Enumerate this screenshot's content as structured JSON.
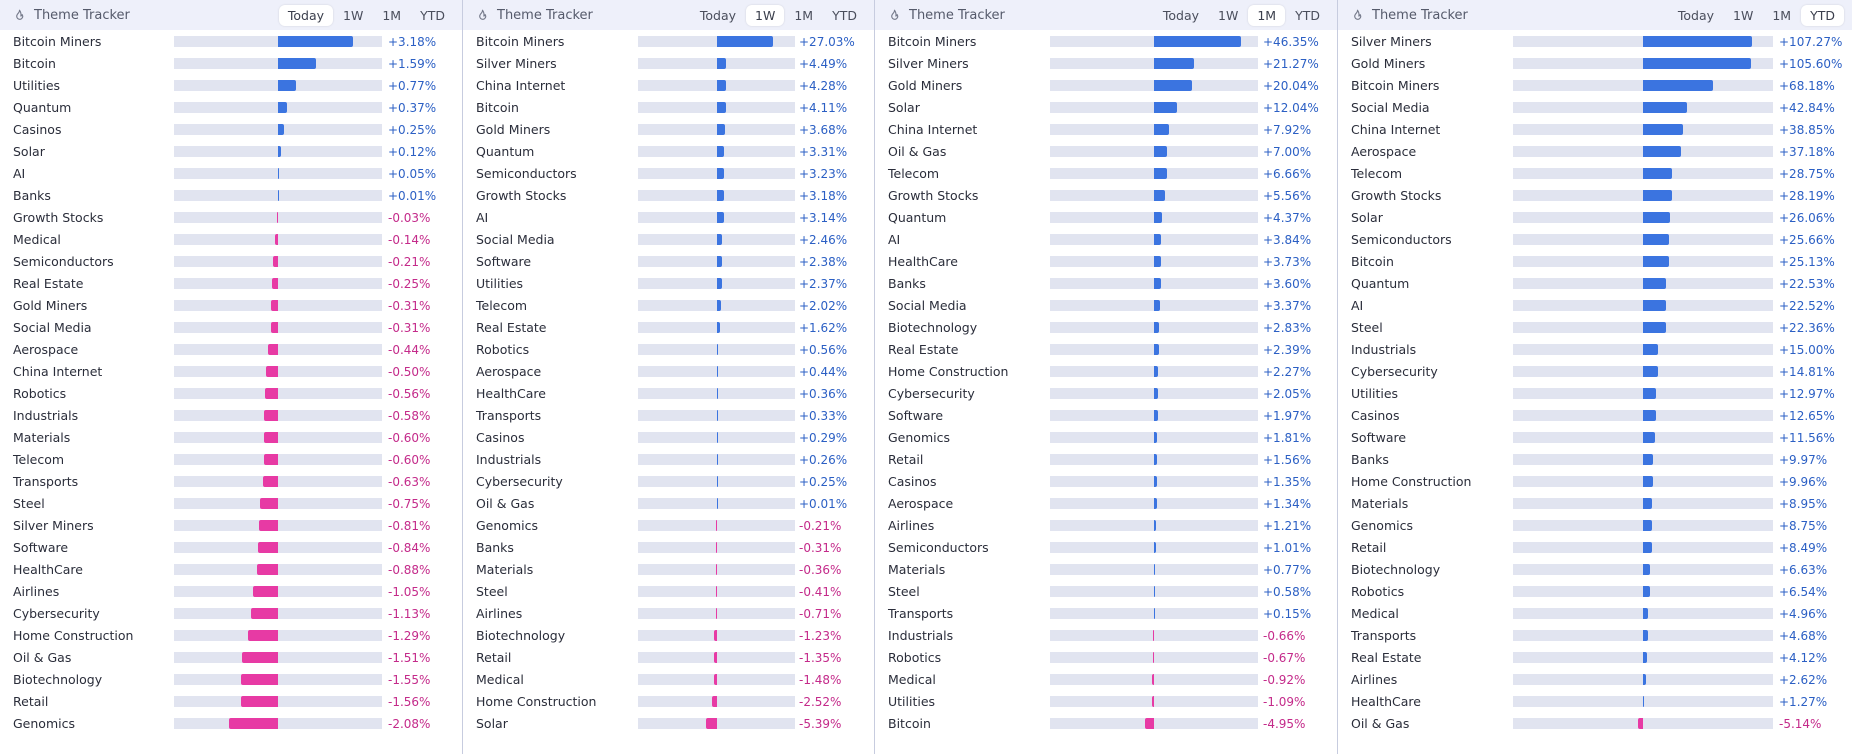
{
  "colors": {
    "positive_bar": "#3b74e0",
    "negative_bar": "#e73aa4",
    "positive_text": "#2b5fc4",
    "negative_text": "#c42a8a",
    "track": "#e1e4f0",
    "header_bg": "#eef0fa"
  },
  "panels": [
    {
      "title": "Theme Tracker",
      "icon": "fire-icon",
      "tabs": [
        "Today",
        "1W",
        "1M",
        "YTD"
      ],
      "active_tab": "Today",
      "max_abs": 4.4,
      "rows": [
        {
          "label": "Bitcoin Miners",
          "value": 3.18,
          "display": "+3.18%"
        },
        {
          "label": "Bitcoin",
          "value": 1.59,
          "display": "+1.59%"
        },
        {
          "label": "Utilities",
          "value": 0.77,
          "display": "+0.77%"
        },
        {
          "label": "Quantum",
          "value": 0.37,
          "display": "+0.37%"
        },
        {
          "label": "Casinos",
          "value": 0.25,
          "display": "+0.25%"
        },
        {
          "label": "Solar",
          "value": 0.12,
          "display": "+0.12%"
        },
        {
          "label": "AI",
          "value": 0.05,
          "display": "+0.05%"
        },
        {
          "label": "Banks",
          "value": 0.01,
          "display": "+0.01%"
        },
        {
          "label": "Growth Stocks",
          "value": -0.03,
          "display": "-0.03%"
        },
        {
          "label": "Medical",
          "value": -0.14,
          "display": "-0.14%"
        },
        {
          "label": "Semiconductors",
          "value": -0.21,
          "display": "-0.21%"
        },
        {
          "label": "Real Estate",
          "value": -0.25,
          "display": "-0.25%"
        },
        {
          "label": "Gold Miners",
          "value": -0.31,
          "display": "-0.31%"
        },
        {
          "label": "Social Media",
          "value": -0.31,
          "display": "-0.31%"
        },
        {
          "label": "Aerospace",
          "value": -0.44,
          "display": "-0.44%"
        },
        {
          "label": "China Internet",
          "value": -0.5,
          "display": "-0.50%"
        },
        {
          "label": "Robotics",
          "value": -0.56,
          "display": "-0.56%"
        },
        {
          "label": "Industrials",
          "value": -0.58,
          "display": "-0.58%"
        },
        {
          "label": "Materials",
          "value": -0.6,
          "display": "-0.60%"
        },
        {
          "label": "Telecom",
          "value": -0.6,
          "display": "-0.60%"
        },
        {
          "label": "Transports",
          "value": -0.63,
          "display": "-0.63%"
        },
        {
          "label": "Steel",
          "value": -0.75,
          "display": "-0.75%"
        },
        {
          "label": "Silver Miners",
          "value": -0.81,
          "display": "-0.81%"
        },
        {
          "label": "Software",
          "value": -0.84,
          "display": "-0.84%"
        },
        {
          "label": "HealthCare",
          "value": -0.88,
          "display": "-0.88%"
        },
        {
          "label": "Airlines",
          "value": -1.05,
          "display": "-1.05%"
        },
        {
          "label": "Cybersecurity",
          "value": -1.13,
          "display": "-1.13%"
        },
        {
          "label": "Home Construction",
          "value": -1.29,
          "display": "-1.29%"
        },
        {
          "label": "Oil & Gas",
          "value": -1.51,
          "display": "-1.51%"
        },
        {
          "label": "Biotechnology",
          "value": -1.55,
          "display": "-1.55%"
        },
        {
          "label": "Retail",
          "value": -1.56,
          "display": "-1.56%"
        },
        {
          "label": "Genomics",
          "value": -2.08,
          "display": "-2.08%"
        }
      ]
    },
    {
      "title": "Theme Tracker",
      "icon": "fire-icon",
      "tabs": [
        "Today",
        "1W",
        "1M",
        "YTD"
      ],
      "active_tab": "1W",
      "max_abs": 37.8,
      "rows": [
        {
          "label": "Bitcoin Miners",
          "value": 27.03,
          "display": "+27.03%"
        },
        {
          "label": "Silver Miners",
          "value": 4.49,
          "display": "+4.49%"
        },
        {
          "label": "China Internet",
          "value": 4.28,
          "display": "+4.28%"
        },
        {
          "label": "Bitcoin",
          "value": 4.11,
          "display": "+4.11%"
        },
        {
          "label": "Gold Miners",
          "value": 3.68,
          "display": "+3.68%"
        },
        {
          "label": "Quantum",
          "value": 3.31,
          "display": "+3.31%"
        },
        {
          "label": "Semiconductors",
          "value": 3.23,
          "display": "+3.23%"
        },
        {
          "label": "Growth Stocks",
          "value": 3.18,
          "display": "+3.18%"
        },
        {
          "label": "AI",
          "value": 3.14,
          "display": "+3.14%"
        },
        {
          "label": "Social Media",
          "value": 2.46,
          "display": "+2.46%"
        },
        {
          "label": "Software",
          "value": 2.38,
          "display": "+2.38%"
        },
        {
          "label": "Utilities",
          "value": 2.37,
          "display": "+2.37%"
        },
        {
          "label": "Telecom",
          "value": 2.02,
          "display": "+2.02%"
        },
        {
          "label": "Real Estate",
          "value": 1.62,
          "display": "+1.62%"
        },
        {
          "label": "Robotics",
          "value": 0.56,
          "display": "+0.56%"
        },
        {
          "label": "Aerospace",
          "value": 0.44,
          "display": "+0.44%"
        },
        {
          "label": "HealthCare",
          "value": 0.36,
          "display": "+0.36%"
        },
        {
          "label": "Transports",
          "value": 0.33,
          "display": "+0.33%"
        },
        {
          "label": "Casinos",
          "value": 0.29,
          "display": "+0.29%"
        },
        {
          "label": "Industrials",
          "value": 0.26,
          "display": "+0.26%"
        },
        {
          "label": "Cybersecurity",
          "value": 0.25,
          "display": "+0.25%"
        },
        {
          "label": "Oil & Gas",
          "value": 0.01,
          "display": "+0.01%"
        },
        {
          "label": "Genomics",
          "value": -0.21,
          "display": "-0.21%"
        },
        {
          "label": "Banks",
          "value": -0.31,
          "display": "-0.31%"
        },
        {
          "label": "Materials",
          "value": -0.36,
          "display": "-0.36%"
        },
        {
          "label": "Steel",
          "value": -0.41,
          "display": "-0.41%"
        },
        {
          "label": "Airlines",
          "value": -0.71,
          "display": "-0.71%"
        },
        {
          "label": "Biotechnology",
          "value": -1.23,
          "display": "-1.23%"
        },
        {
          "label": "Retail",
          "value": -1.35,
          "display": "-1.35%"
        },
        {
          "label": "Medical",
          "value": -1.48,
          "display": "-1.48%"
        },
        {
          "label": "Home Construction",
          "value": -2.52,
          "display": "-2.52%"
        },
        {
          "label": "Solar",
          "value": -5.39,
          "display": "-5.39%"
        }
      ]
    },
    {
      "title": "Theme Tracker",
      "icon": "fire-icon",
      "tabs": [
        "Today",
        "1W",
        "1M",
        "YTD"
      ],
      "active_tab": "1M",
      "max_abs": 55.3,
      "rows": [
        {
          "label": "Bitcoin Miners",
          "value": 46.35,
          "display": "+46.35%"
        },
        {
          "label": "Silver Miners",
          "value": 21.27,
          "display": "+21.27%"
        },
        {
          "label": "Gold Miners",
          "value": 20.04,
          "display": "+20.04%"
        },
        {
          "label": "Solar",
          "value": 12.04,
          "display": "+12.04%"
        },
        {
          "label": "China Internet",
          "value": 7.92,
          "display": "+7.92%"
        },
        {
          "label": "Oil & Gas",
          "value": 7.0,
          "display": "+7.00%"
        },
        {
          "label": "Telecom",
          "value": 6.66,
          "display": "+6.66%"
        },
        {
          "label": "Growth Stocks",
          "value": 5.56,
          "display": "+5.56%"
        },
        {
          "label": "Quantum",
          "value": 4.37,
          "display": "+4.37%"
        },
        {
          "label": "AI",
          "value": 3.84,
          "display": "+3.84%"
        },
        {
          "label": "HealthCare",
          "value": 3.73,
          "display": "+3.73%"
        },
        {
          "label": "Banks",
          "value": 3.6,
          "display": "+3.60%"
        },
        {
          "label": "Social Media",
          "value": 3.37,
          "display": "+3.37%"
        },
        {
          "label": "Biotechnology",
          "value": 2.83,
          "display": "+2.83%"
        },
        {
          "label": "Real Estate",
          "value": 2.39,
          "display": "+2.39%"
        },
        {
          "label": "Home Construction",
          "value": 2.27,
          "display": "+2.27%"
        },
        {
          "label": "Cybersecurity",
          "value": 2.05,
          "display": "+2.05%"
        },
        {
          "label": "Software",
          "value": 1.97,
          "display": "+1.97%"
        },
        {
          "label": "Genomics",
          "value": 1.81,
          "display": "+1.81%"
        },
        {
          "label": "Retail",
          "value": 1.56,
          "display": "+1.56%"
        },
        {
          "label": "Casinos",
          "value": 1.35,
          "display": "+1.35%"
        },
        {
          "label": "Aerospace",
          "value": 1.34,
          "display": "+1.34%"
        },
        {
          "label": "Airlines",
          "value": 1.21,
          "display": "+1.21%"
        },
        {
          "label": "Semiconductors",
          "value": 1.01,
          "display": "+1.01%"
        },
        {
          "label": "Materials",
          "value": 0.77,
          "display": "+0.77%"
        },
        {
          "label": "Steel",
          "value": 0.58,
          "display": "+0.58%"
        },
        {
          "label": "Transports",
          "value": 0.15,
          "display": "+0.15%"
        },
        {
          "label": "Industrials",
          "value": -0.66,
          "display": "-0.66%"
        },
        {
          "label": "Robotics",
          "value": -0.67,
          "display": "-0.67%"
        },
        {
          "label": "Medical",
          "value": -0.92,
          "display": "-0.92%"
        },
        {
          "label": "Utilities",
          "value": -1.09,
          "display": "-1.09%"
        },
        {
          "label": "Bitcoin",
          "value": -4.95,
          "display": "-4.95%"
        }
      ]
    },
    {
      "title": "Theme Tracker",
      "icon": "fire-icon",
      "tabs": [
        "Today",
        "1W",
        "1M",
        "YTD"
      ],
      "active_tab": "YTD",
      "max_abs": 127.5,
      "rows": [
        {
          "label": "Silver Miners",
          "value": 107.27,
          "display": "+107.27%"
        },
        {
          "label": "Gold Miners",
          "value": 105.6,
          "display": "+105.60%"
        },
        {
          "label": "Bitcoin Miners",
          "value": 68.18,
          "display": "+68.18%"
        },
        {
          "label": "Social Media",
          "value": 42.84,
          "display": "+42.84%"
        },
        {
          "label": "China Internet",
          "value": 38.85,
          "display": "+38.85%"
        },
        {
          "label": "Aerospace",
          "value": 37.18,
          "display": "+37.18%"
        },
        {
          "label": "Telecom",
          "value": 28.75,
          "display": "+28.75%"
        },
        {
          "label": "Growth Stocks",
          "value": 28.19,
          "display": "+28.19%"
        },
        {
          "label": "Solar",
          "value": 26.06,
          "display": "+26.06%"
        },
        {
          "label": "Semiconductors",
          "value": 25.66,
          "display": "+25.66%"
        },
        {
          "label": "Bitcoin",
          "value": 25.13,
          "display": "+25.13%"
        },
        {
          "label": "Quantum",
          "value": 22.53,
          "display": "+22.53%"
        },
        {
          "label": "AI",
          "value": 22.52,
          "display": "+22.52%"
        },
        {
          "label": "Steel",
          "value": 22.36,
          "display": "+22.36%"
        },
        {
          "label": "Industrials",
          "value": 15.0,
          "display": "+15.00%"
        },
        {
          "label": "Cybersecurity",
          "value": 14.81,
          "display": "+14.81%"
        },
        {
          "label": "Utilities",
          "value": 12.97,
          "display": "+12.97%"
        },
        {
          "label": "Casinos",
          "value": 12.65,
          "display": "+12.65%"
        },
        {
          "label": "Software",
          "value": 11.56,
          "display": "+11.56%"
        },
        {
          "label": "Banks",
          "value": 9.97,
          "display": "+9.97%"
        },
        {
          "label": "Home Construction",
          "value": 9.96,
          "display": "+9.96%"
        },
        {
          "label": "Materials",
          "value": 8.95,
          "display": "+8.95%"
        },
        {
          "label": "Genomics",
          "value": 8.75,
          "display": "+8.75%"
        },
        {
          "label": "Retail",
          "value": 8.49,
          "display": "+8.49%"
        },
        {
          "label": "Biotechnology",
          "value": 6.63,
          "display": "+6.63%"
        },
        {
          "label": "Robotics",
          "value": 6.54,
          "display": "+6.54%"
        },
        {
          "label": "Medical",
          "value": 4.96,
          "display": "+4.96%"
        },
        {
          "label": "Transports",
          "value": 4.68,
          "display": "+4.68%"
        },
        {
          "label": "Real Estate",
          "value": 4.12,
          "display": "+4.12%"
        },
        {
          "label": "Airlines",
          "value": 2.62,
          "display": "+2.62%"
        },
        {
          "label": "HealthCare",
          "value": 1.27,
          "display": "+1.27%"
        },
        {
          "label": "Oil & Gas",
          "value": -5.14,
          "display": "-5.14%"
        }
      ]
    }
  ]
}
